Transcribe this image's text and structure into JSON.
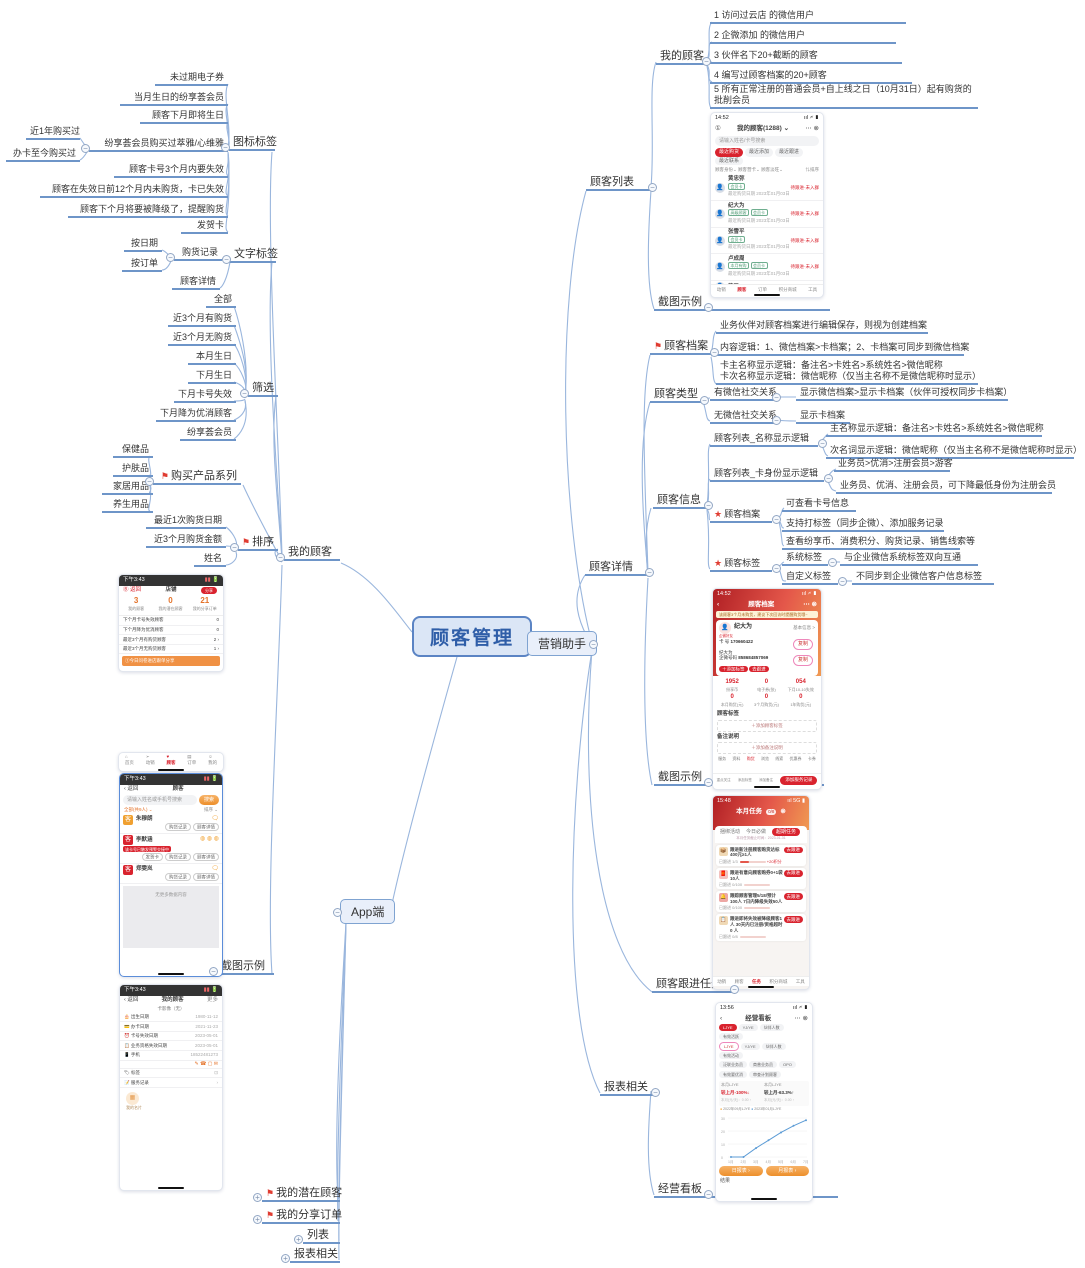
{
  "icons": {
    "minus": "−",
    "plus": "+",
    "flag": "⚑",
    "star": "★",
    "chev": "⌄",
    "more": "⋯",
    "close": "⊗",
    "info": "①",
    "back": "‹",
    "search": "🔍",
    "arrow": "›"
  },
  "root": {
    "label": "顾客管理"
  },
  "marketing": {
    "label": "营销助手"
  },
  "app": {
    "label": "App端",
    "shot": "截图示例",
    "children": [
      "我的潜在顾客",
      "我的分享订单",
      "列表",
      "报表相关"
    ]
  },
  "right": {
    "list": {
      "label": "顾客列表",
      "shot": "截图示例",
      "my": {
        "label": "我的顾客",
        "items": [
          "1 访问过云店 的微信用户",
          "2 企微添加 的微信用户",
          "3 伙伴名下20+截断的顾客",
          "4 编写过顾客档案的20+顾客",
          "5 所有正常注册的普通会员+自上线之日（10月31日）起有购货的批削会员"
        ]
      }
    },
    "detail": {
      "label": "顾客详情",
      "shot": "截图示例",
      "archive": {
        "label": "顾客档案",
        "c1": "业务伙伴对顾客档案进行编辑保存，则视为创建档案",
        "c2": "内容逻辑：1、微信档案>卡档案；2、卡档案可同步到微信档案",
        "c3a": "卡主名称显示逻辑：备注名>卡姓名>系统姓名>微信昵称",
        "c3b": "卡次名称显示逻辑：微信昵称（仅当主名称不是微信昵称时显示）"
      },
      "type": {
        "label": "顾客类型",
        "wechat": "有微信社交关系",
        "wechat_desc": "显示微信档案>显示卡档案（伙伴可授权同步卡档案）",
        "no_wechat": "无微信社交关系",
        "no_wechat_desc": "显示卡档案"
      },
      "info": {
        "label": "顾客信息",
        "name_logic": {
          "label": "顾客列表_名称显示逻辑",
          "main": "主名称显示逻辑：备注名>卡姓名>系统姓名>微信昵称",
          "sub": "次名词显示逻辑：微信昵称（仅当主名称不是微信昵称时显示）"
        },
        "card_logic": {
          "label": "顾客列表_卡身份显示逻辑",
          "order": "业务员>优消>注册会员>游客",
          "downgrade": "业务员、优消、注册会员，可下降最低身份为注册会员"
        },
        "archive": {
          "label": "顾客档案",
          "items": [
            "可查看卡号信息",
            "支持打标签（同步企微）、添加服务记录",
            "查看纷享币、消费积分、购货记录、销售线索等"
          ]
        },
        "tags": {
          "label": "顾客标签",
          "system": "系统标签",
          "system_desc": "与企业微信系统标签双向互通",
          "custom": "自定义标签",
          "custom_desc": "不同步到企业微信客户信息标签"
        }
      }
    },
    "task": {
      "label": "顾客跟进任务"
    },
    "report": {
      "label": "报表相关",
      "board": {
        "label": "经营看板"
      }
    }
  },
  "left": {
    "my": {
      "label": "我的顾客"
    },
    "icon_tags": {
      "label": "图标标签",
      "i1": "未过期电子券",
      "i2": "当月生日的纷享荟会员",
      "i3": "顾客下月即将生日",
      "purchase": {
        "label": "纷享荟会员购买过萃雅/心维雅",
        "c1": "近1年购买过",
        "c2": "办卡至今购买过"
      },
      "i4": "顾客卡号3个月内要失效",
      "i5": "顾客在失效日前12个月内未购货，卡已失效",
      "i6": "顾客下个月将要被降级了，提醒购货",
      "i7": "发贺卡"
    },
    "text_tags": {
      "label": "文字标签",
      "record": {
        "label": "购货记录",
        "c1": "按日期",
        "c2": "按订单"
      },
      "detail": "顾客详情"
    },
    "filter": {
      "label": "筛选",
      "items": [
        "全部",
        "近3个月有购货",
        "近3个月无购货",
        "本月生日",
        "下月生日",
        "下月卡号失效",
        "下月降为优消顾客",
        "纷享荟会员"
      ]
    },
    "series": {
      "label": "购买产品系列",
      "items": [
        "保健品",
        "护肤品",
        "家居用品",
        "养生用品"
      ]
    },
    "sort": {
      "label": "排序",
      "items": [
        "最近1次购货日期",
        "近3个月购货金额",
        "姓名"
      ]
    },
    "shot": "截图示例"
  },
  "phones": {
    "p1": {
      "time": "14:52",
      "status": "ııl 🗲 ▮",
      "title": "我的顾客(1288) ⌄",
      "search": "请输入姓名/卡号搜索",
      "tabs": [
        "最近购货",
        "最近添加",
        "最近跟进",
        "最近联系"
      ],
      "filters": [
        "顾客身份⌄",
        "顾客营卡⌄",
        "顾客淡旺⌄",
        "⇅排序"
      ],
      "right_flag": "待跟进·未入群",
      "badge": "双卡会员",
      "date": "最近购货日期 2023年01月03日",
      "rows": [
        {
          "name": "黄忠弥",
          "t1": "会员卡",
          "t2": ""
        },
        {
          "name": "纪大为",
          "t1": "高级顾客",
          "t2": "会员卡"
        },
        {
          "name": "张雪平",
          "t1": "会员卡",
          "t2": ""
        },
        {
          "name": "卢成周",
          "t1": "本月有购",
          "t2": "会员卡"
        },
        {
          "name": "花卫",
          "t1": "",
          "t2": ""
        }
      ],
      "nav": [
        "动销",
        "顾客",
        "订单",
        "积分商城",
        "工具"
      ]
    },
    "p2": {
      "time": "14:52",
      "title": "顾客档案",
      "notice": "该顾客3个月未购货，建议下次回访时提醒购货哦~",
      "corner": "企微好友",
      "name": "纪大为",
      "info_link": "基本信息 >",
      "card_label": "卡 号",
      "card_no": "170660422",
      "copy": "复制",
      "card_name": "纪大为",
      "wx_label": "企微号码",
      "wx_no": "858684857069",
      "btn_tag": "＋添加标签",
      "btn_follow": "去跟进",
      "stats": [
        {
          "v": "1952",
          "l": "纷享币"
        },
        {
          "v": "0",
          "l": "电子券(张)"
        },
        {
          "v": "054",
          "l": "下月10-10失效"
        },
        {
          "v": "0",
          "l": "本月购货(元)"
        },
        {
          "v": "0",
          "l": "3个月购货(元)"
        },
        {
          "v": "0",
          "l": "1年购货(元)"
        }
      ],
      "sec1": "顾客标签",
      "add1": "＋添加顾客标签",
      "sec2": "备注说明",
      "add2": "＋添加备注说明",
      "tabs": [
        "服务",
        "资料",
        "购货",
        "浏览",
        "线索",
        "优惠券",
        "卡券"
      ],
      "actions": [
        "重点关注",
        "添加标签",
        "添加备注"
      ],
      "cta": "添加服务记录"
    },
    "p3": {
      "time": "15:48",
      "title": "本月任务",
      "badge": "0/8",
      "tabs": [
        "捆绑活动",
        "今日必做",
        "超期任务"
      ],
      "subtitle": "本月任务截止时间：2023-01-31",
      "btn": "去跟进",
      "cards": [
        {
          "t": "跟进新注册顾客购货达标400元≥1人",
          "s": "已跟进 1/3",
          "r": "+20积分"
        },
        {
          "t": "跟进有意向顾客购券0+1袋10人",
          "s": "已跟进 0/100",
          "r": ""
        },
        {
          "t": "跟踪顾客管理5/18/预计100人 7日内降级失效50人",
          "s": "已跟进 0/100",
          "r": ""
        },
        {
          "t": "跟进即将失效被降级顾客1人 30天内已注册/资格超时 0 人",
          "s": "已跟进 0/8",
          "r": ""
        }
      ],
      "nav": [
        "动销",
        "顾客",
        "任务",
        "积分商城",
        "工具"
      ]
    },
    "p4": {
      "time": "13:56",
      "title": "经营看板",
      "pills_r1": [
        "LJYE",
        "YJ/YE",
        "伙伴人数",
        "有效活跃"
      ],
      "pills_r2": [
        "LJYE",
        "YJ/YE",
        "伙伴人数",
        "有效活动"
      ],
      "pills_r3": [
        "泛联业务员",
        "商普业务员",
        "OPO"
      ],
      "pills_r4": [
        "有效要优消",
        "审查计划顾客"
      ],
      "m1_label": "本月LJYE",
      "m1_value": "较上月-100%↓",
      "m2_label": "本月LJYE",
      "m2_value": "较上月-63.3%↑",
      "sub1": "本月(元/天)：0.00 ↑",
      "sub2": "本月(元/天)：0.00 ↑",
      "legend": [
        "2022年09月LJYE",
        "2023年01月LJYE"
      ],
      "chart_data": {
        "type": "line",
        "x": [
          "1月",
          "2月",
          "3月",
          "4月",
          "5月",
          "6月",
          "7月"
        ],
        "values": [
          0,
          0,
          8,
          15,
          22,
          28,
          33
        ],
        "yticks": [
          0,
          10,
          20,
          30
        ],
        "ylim": [
          0,
          35
        ]
      },
      "btn1": "日报表 ›",
      "btn2": "月报表 ›",
      "foot": "结果"
    },
    "p5": {
      "time": "下午3:43",
      "back": "Ⓑ 返回",
      "title": "店铺",
      "share": "分享",
      "stats": [
        {
          "v": "3",
          "l": "我的顾客"
        },
        {
          "v": "0",
          "l": "我的潜在顾客"
        },
        {
          "v": "21",
          "l": "我的分享订单"
        }
      ],
      "rows": [
        {
          "l": "下个月卡号失效顾客",
          "v": "0"
        },
        {
          "l": "下个月降为优消顾客",
          "v": "0"
        },
        {
          "l": "最近3个月有购货顾客",
          "v": "2 ›"
        },
        {
          "l": "最近3个月无购货顾客",
          "v": "1 ›"
        }
      ],
      "banner": "①今日问卷进店跟单分享"
    },
    "p6": {
      "items": [
        "首页",
        "动销",
        "顾客",
        "订单",
        "我的"
      ]
    },
    "p7": {
      "time": "下午3:43",
      "back": "‹ 返回",
      "title": "顾客",
      "search": "请输入姓名或手机号搜索",
      "search_btn": "搜索",
      "filter_l": "全部(共9人) ⌄",
      "filter_r": "排序 ⌄",
      "warn": "该卡号已触发预警交接中",
      "rows": [
        {
          "name": "朱穆朗",
          "b1": "",
          "b2": "购货记录",
          "b3": "顾客详情"
        },
        {
          "name": "李默涵",
          "b1": "发贺卡",
          "b2": "购货记录",
          "b3": "顾客详情"
        },
        {
          "name": "郑雯岚",
          "b1": "",
          "b2": "购货记录",
          "b3": "顾客详情"
        }
      ],
      "empty": "无更多数据内容"
    },
    "p8": {
      "time": "下午3:43",
      "back": "‹ 返回",
      "title": "我的顾客",
      "more": "更多",
      "sub": "卡影像（无）",
      "rows": [
        {
          "l": "出生日期",
          "v": "1980-11-12"
        },
        {
          "l": "办卡日期",
          "v": "2021-11-23"
        },
        {
          "l": "卡号失效日期",
          "v": "2023-05-01"
        },
        {
          "l": "业务资格失效日期",
          "v": "2023-05-01"
        },
        {
          "l": "手机",
          "v": "18522481273"
        },
        {
          "l": "标签",
          "v": "⊡"
        },
        {
          "l": "服务记录",
          "v": "›"
        }
      ],
      "icons_row": "✎ ☎ ▢ ✉",
      "card": "我的名片"
    }
  }
}
